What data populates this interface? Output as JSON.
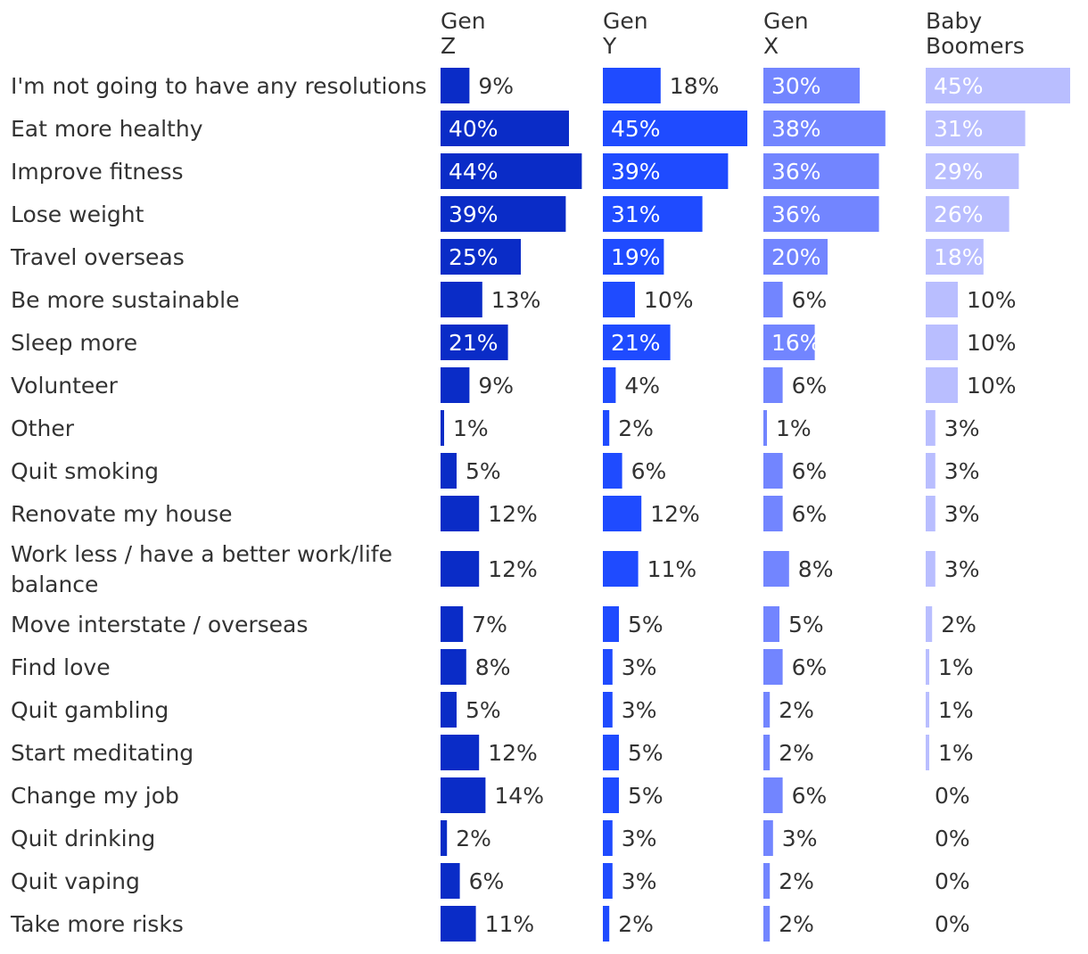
{
  "chart_data": {
    "type": "bar",
    "orientation": "horizontal",
    "title": "",
    "xlabel": "",
    "ylabel": "",
    "value_unit": "%",
    "categories": [
      "I'm not going to have any resolutions",
      "Eat more healthy",
      "Improve fitness",
      "Lose weight",
      "Travel overseas",
      "Be more sustainable",
      "Sleep more",
      "Volunteer",
      "Other",
      "Quit smoking",
      "Renovate my house",
      "Work less / have a better work/life balance",
      "Move interstate / overseas",
      "Find love",
      "Quit gambling",
      "Start meditating",
      "Change my job",
      "Quit drinking",
      "Quit vaping",
      "Take more risks"
    ],
    "series": [
      {
        "name": "Gen Z",
        "color": "#0A2CC7",
        "values": [
          9,
          40,
          44,
          39,
          25,
          13,
          21,
          9,
          1,
          5,
          12,
          12,
          7,
          8,
          5,
          12,
          14,
          2,
          6,
          11
        ]
      },
      {
        "name": "Gen Y",
        "color": "#1F4BFF",
        "values": [
          18,
          45,
          39,
          31,
          19,
          10,
          21,
          4,
          2,
          6,
          12,
          11,
          5,
          3,
          3,
          5,
          5,
          3,
          3,
          2
        ]
      },
      {
        "name": "Gen X",
        "color": "#7285FF",
        "values": [
          30,
          38,
          36,
          36,
          20,
          6,
          16,
          6,
          1,
          6,
          6,
          8,
          5,
          6,
          2,
          2,
          6,
          3,
          2,
          2
        ]
      },
      {
        "name": "Baby Boomers",
        "color": "#B9BEFF",
        "values": [
          45,
          31,
          29,
          26,
          18,
          10,
          10,
          10,
          3,
          3,
          3,
          3,
          2,
          1,
          1,
          1,
          0,
          0,
          0,
          0
        ]
      }
    ],
    "label_color_dark": "#333333",
    "label_color_light": "#ffffff"
  }
}
